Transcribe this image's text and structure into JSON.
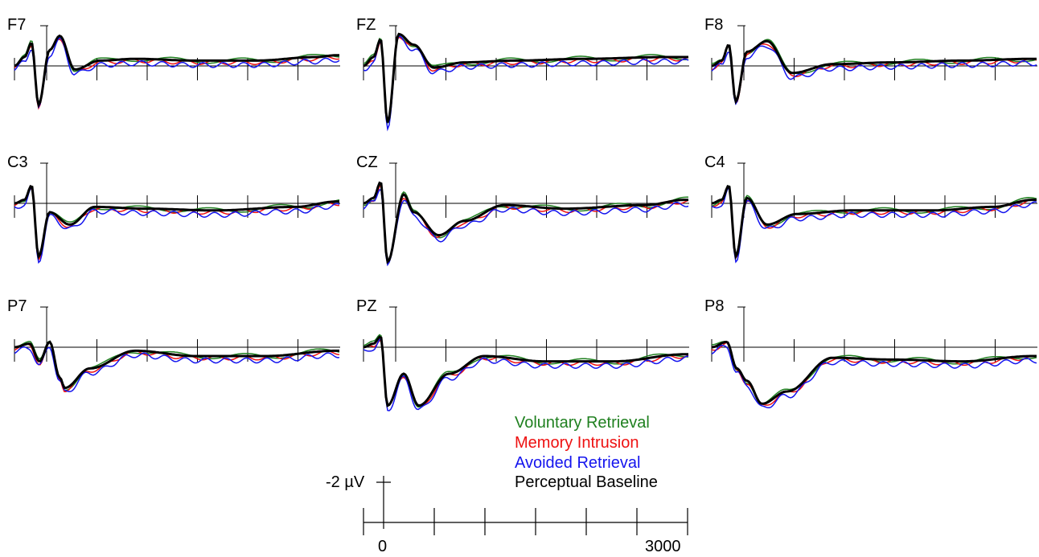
{
  "chart_data": {
    "type": "line",
    "panels": [
      {
        "label": "F7",
        "points": [
          [
            0,
            0
          ],
          [
            0.1,
            0.5
          ],
          [
            0.17,
            1.3
          ],
          [
            0.24,
            -2.2
          ],
          [
            0.35,
            0.9
          ],
          [
            0.45,
            1.7
          ],
          [
            0.6,
            -0.2
          ],
          [
            0.85,
            0.3
          ],
          [
            1.2,
            0.4
          ],
          [
            1.8,
            0.3
          ],
          [
            2.4,
            0.3
          ],
          [
            3.0,
            0.5
          ],
          [
            3.2,
            0.6
          ]
        ]
      },
      {
        "label": "FZ",
        "points": [
          [
            0,
            0
          ],
          [
            0.1,
            0.5
          ],
          [
            0.17,
            1.5
          ],
          [
            0.24,
            -3.2
          ],
          [
            0.35,
            1.8
          ],
          [
            0.5,
            1.2
          ],
          [
            0.7,
            -0.1
          ],
          [
            1.0,
            0.2
          ],
          [
            1.5,
            0.3
          ],
          [
            2.2,
            0.4
          ],
          [
            3.0,
            0.5
          ],
          [
            3.2,
            0.5
          ]
        ]
      },
      {
        "label": "F8",
        "points": [
          [
            0,
            0
          ],
          [
            0.1,
            0.3
          ],
          [
            0.17,
            1.2
          ],
          [
            0.24,
            -2.0
          ],
          [
            0.35,
            0.8
          ],
          [
            0.55,
            1.4
          ],
          [
            0.8,
            -0.4
          ],
          [
            1.2,
            0.1
          ],
          [
            1.8,
            0.2
          ],
          [
            2.5,
            0.3
          ],
          [
            3.2,
            0.4
          ]
        ]
      },
      {
        "label": "C3",
        "points": [
          [
            0,
            0
          ],
          [
            0.1,
            0.2
          ],
          [
            0.17,
            1.0
          ],
          [
            0.24,
            -3.0
          ],
          [
            0.35,
            -0.5
          ],
          [
            0.55,
            -1.2
          ],
          [
            0.8,
            -0.2
          ],
          [
            1.3,
            -0.3
          ],
          [
            2.0,
            -0.4
          ],
          [
            2.8,
            -0.2
          ],
          [
            3.2,
            0.1
          ]
        ]
      },
      {
        "label": "CZ",
        "points": [
          [
            0,
            0
          ],
          [
            0.1,
            0.3
          ],
          [
            0.17,
            1.2
          ],
          [
            0.24,
            -3.3
          ],
          [
            0.4,
            0.5
          ],
          [
            0.5,
            -0.5
          ],
          [
            0.75,
            -1.8
          ],
          [
            1.0,
            -1.0
          ],
          [
            1.4,
            -0.1
          ],
          [
            2.0,
            -0.3
          ],
          [
            2.8,
            -0.1
          ],
          [
            3.2,
            0.2
          ]
        ]
      },
      {
        "label": "C4",
        "points": [
          [
            0,
            0
          ],
          [
            0.1,
            0.2
          ],
          [
            0.17,
            1.0
          ],
          [
            0.24,
            -3.0
          ],
          [
            0.35,
            0.3
          ],
          [
            0.55,
            -1.2
          ],
          [
            0.85,
            -0.6
          ],
          [
            1.4,
            -0.4
          ],
          [
            2.2,
            -0.4
          ],
          [
            2.8,
            -0.2
          ],
          [
            3.2,
            0.2
          ]
        ]
      },
      {
        "label": "P7",
        "points": [
          [
            0,
            0
          ],
          [
            0.15,
            0.2
          ],
          [
            0.25,
            -0.8
          ],
          [
            0.35,
            0.3
          ],
          [
            0.45,
            -1.7
          ],
          [
            0.5,
            -2.3
          ],
          [
            0.75,
            -1.2
          ],
          [
            1.2,
            -0.2
          ],
          [
            1.8,
            -0.5
          ],
          [
            2.5,
            -0.5
          ],
          [
            3.2,
            -0.2
          ]
        ]
      },
      {
        "label": "PZ",
        "points": [
          [
            0,
            0
          ],
          [
            0.1,
            0.2
          ],
          [
            0.17,
            0.6
          ],
          [
            0.24,
            -3.3
          ],
          [
            0.4,
            -1.5
          ],
          [
            0.55,
            -3.3
          ],
          [
            0.85,
            -1.5
          ],
          [
            1.2,
            -0.5
          ],
          [
            1.8,
            -0.8
          ],
          [
            2.5,
            -0.8
          ],
          [
            3.2,
            -0.4
          ]
        ]
      },
      {
        "label": "P8",
        "points": [
          [
            0,
            0
          ],
          [
            0.15,
            0.3
          ],
          [
            0.25,
            -1.2
          ],
          [
            0.35,
            -1.9
          ],
          [
            0.5,
            -3.2
          ],
          [
            0.75,
            -2.5
          ],
          [
            1.2,
            -0.6
          ],
          [
            1.8,
            -0.7
          ],
          [
            2.5,
            -0.8
          ],
          [
            3.2,
            -0.5
          ]
        ]
      }
    ],
    "series_styles": [
      {
        "name": "Voluntary Retrieval",
        "color": "#208020"
      },
      {
        "name": "Memory Intrusion",
        "color": "#ee1111"
      },
      {
        "name": "Avoided Retrieval",
        "color": "#1414ee"
      },
      {
        "name": "Perceptual Baseline",
        "color": "#000000"
      }
    ],
    "scale": {
      "amplitude_label": "-2 µV",
      "x_tick_start": "0",
      "x_tick_end": "3000"
    }
  }
}
